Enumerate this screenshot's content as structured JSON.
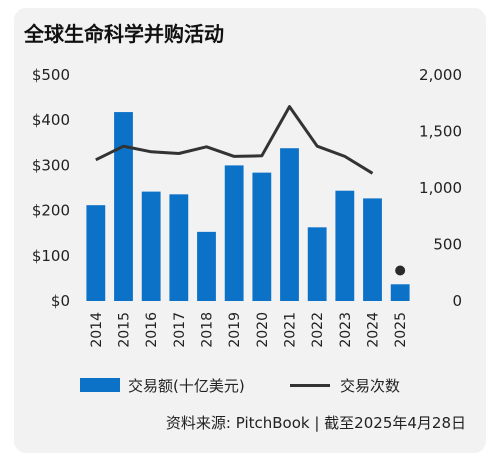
{
  "title": "全球生命科学并购活动",
  "source": "资料来源: PitchBook | 截至2025年4月28日",
  "colors": {
    "bar": "#0b72c8",
    "line": "#333333",
    "background": "#f2f2f2",
    "dot": "#2a2a2a"
  },
  "chart_data": {
    "type": "bar",
    "categories": [
      "2014",
      "2015",
      "2016",
      "2017",
      "2018",
      "2019",
      "2020",
      "2021",
      "2022",
      "2023",
      "2024",
      "2025"
    ],
    "series": [
      {
        "name": "交易额(十亿美元)",
        "axis": "left",
        "kind": "bar",
        "values": [
          212,
          418,
          242,
          236,
          153,
          300,
          284,
          338,
          163,
          244,
          227,
          37
        ]
      },
      {
        "name": "交易次数",
        "axis": "right",
        "kind": "line",
        "values": [
          1250,
          1370,
          1320,
          1305,
          1365,
          1280,
          1285,
          1720,
          1370,
          1280,
          1130,
          null
        ],
        "markers": [
          {
            "x": "2025",
            "y": 270
          }
        ]
      }
    ],
    "left_axis": {
      "ylim": [
        0,
        500
      ],
      "ticks": [
        0,
        100,
        200,
        300,
        400,
        500
      ],
      "tick_labels": [
        "$0",
        "$100",
        "$200",
        "$300",
        "$400",
        "$500"
      ]
    },
    "right_axis": {
      "ylim": [
        0,
        2000
      ],
      "ticks": [
        0,
        500,
        1000,
        1500,
        2000
      ],
      "tick_labels": [
        "0",
        "500",
        "1,000",
        "1,500",
        "2,000"
      ]
    },
    "grid": false,
    "legend": "bottom"
  }
}
